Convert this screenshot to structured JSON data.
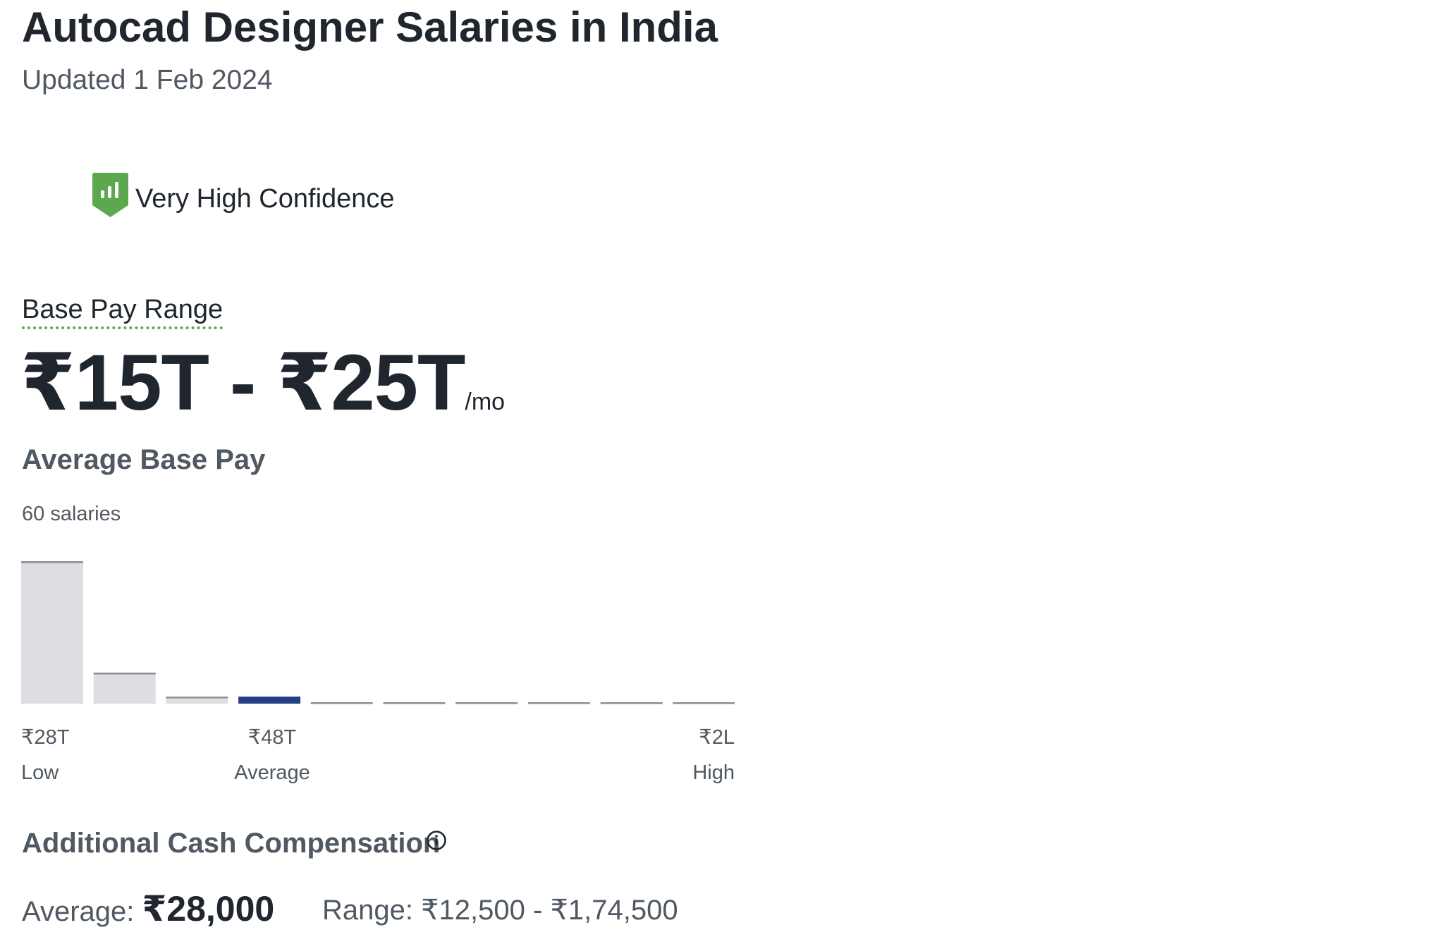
{
  "header": {
    "title": "Autocad Designer Salaries in India",
    "updated": "Updated 1 Feb 2024"
  },
  "confidence": {
    "label": "Very High Confidence",
    "icon": "bar-chart-shield-icon",
    "color": "#5ba84f"
  },
  "base_pay": {
    "range_label": "Base Pay Range",
    "range_value": "₹15T - ₹25T",
    "period": "/mo",
    "average_label": "Average Base Pay",
    "salary_count": "60 salaries"
  },
  "chart_data": {
    "type": "bar",
    "bar_heights_relative": [
      100,
      21,
      4,
      5,
      0,
      0,
      0,
      0,
      0,
      0
    ],
    "highlight_index": 3,
    "colors": {
      "bar": "#dddee2",
      "bar_top": "#8a8d92",
      "highlight": "#233f86"
    },
    "tick_labels": [
      {
        "value": "₹28T",
        "caption": "Low"
      },
      {
        "value": "₹48T",
        "caption": "Average"
      },
      {
        "value": "₹2L",
        "caption": "High"
      }
    ]
  },
  "additional_cash": {
    "title": "Additional Cash Compensation",
    "info_icon": "info-circle-icon",
    "average_label": "Average:",
    "average_value": "₹28,000",
    "range_text": "Range: ₹12,500 - ₹1,74,500"
  }
}
